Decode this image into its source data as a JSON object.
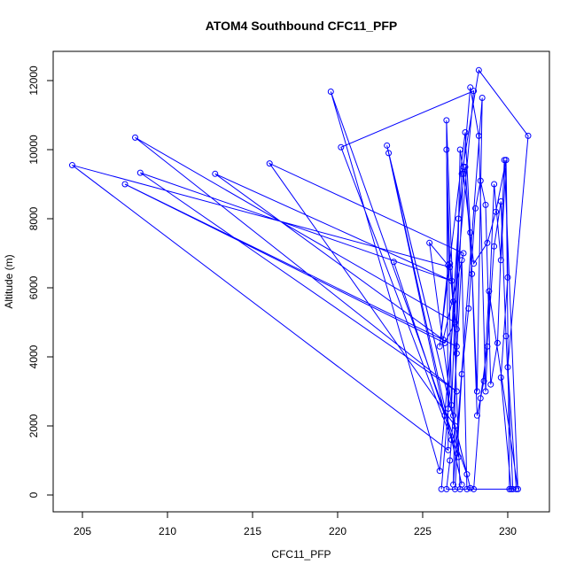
{
  "chart_data": {
    "type": "line",
    "title": "ATOM4 Southbound CFC11_PFP",
    "x_label": "CFC11_PFP",
    "y_label": "Altitude (m)",
    "color": "#0000ff",
    "markers": true,
    "grid": false,
    "xlim": [
      203.28,
      232.45
    ],
    "ylim": [
      -487,
      12846
    ],
    "xticks": [
      205,
      210,
      215,
      220,
      225,
      230
    ],
    "yticks": [
      0,
      2000,
      4000,
      6000,
      8000,
      10000,
      12000
    ],
    "x": [
      226.1,
      226.5,
      226.8,
      227.3,
      228.3,
      231.2,
      230.0,
      230.5,
      227.2,
      226.4,
      226.5,
      204.4,
      226.6,
      227.0,
      207.5,
      226.3,
      226.9,
      208.1,
      227.0,
      208.4,
      226.7,
      212.8,
      226.2,
      227.4,
      216.0,
      226.9,
      227.6,
      219.6,
      226.0,
      228.0,
      220.2,
      226.7,
      227.3,
      222.9,
      227.8,
      223.0,
      226.3,
      223.3,
      227.1,
      225.4,
      226.5,
      226.0,
      227.5,
      227.8,
      228.2,
      228.5,
      226.8,
      227.2,
      227.4,
      228.0,
      228.8,
      229.3,
      229.9,
      230.0,
      229.6,
      230.2,
      226.9,
      227.3,
      227.7,
      228.1,
      228.4,
      228.7,
      229.0,
      229.4,
      229.8,
      230.6,
      228.9,
      228.6,
      228.2,
      227.9,
      227.5,
      227.1,
      226.7,
      226.4,
      226.6,
      227.0,
      227.4,
      227.8,
      228.3,
      228.7,
      229.2,
      229.6,
      229.9,
      230.1,
      227.6,
      227.3,
      227.0,
      226.8,
      226.6,
      226.4,
      228.0,
      228.4,
      228.8,
      229.2,
      229.6,
      229.9,
      230.3
    ],
    "values": [
      170,
      2500,
      5600,
      9300,
      12300,
      10400,
      3700,
      170,
      170,
      10850,
      1300,
      9550,
      6600,
      4300,
      9000,
      4400,
      5000,
      10350,
      3000,
      9330,
      6200,
      9300,
      4500,
      7000,
      9600,
      2000,
      600,
      11680,
      700,
      11700,
      10070,
      1600,
      300,
      10120,
      200,
      9900,
      2300,
      6750,
      1100,
      7300,
      6650,
      4300,
      10500,
      7600,
      3000,
      11500,
      300,
      10000,
      9300,
      6700,
      7300,
      8200,
      9700,
      6300,
      3400,
      170,
      170,
      3500,
      5400,
      8300,
      9100,
      8400,
      3200,
      4400,
      9700,
      170,
      5900,
      3300,
      2300,
      6400,
      9500,
      8000,
      2600,
      10000,
      6700,
      4800,
      9500,
      11800,
      10400,
      3000,
      9000,
      6800,
      9700,
      170,
      170,
      6800,
      4100,
      2300,
      1000,
      170,
      170,
      2800,
      4300,
      7200,
      8500,
      4600,
      170
    ]
  }
}
